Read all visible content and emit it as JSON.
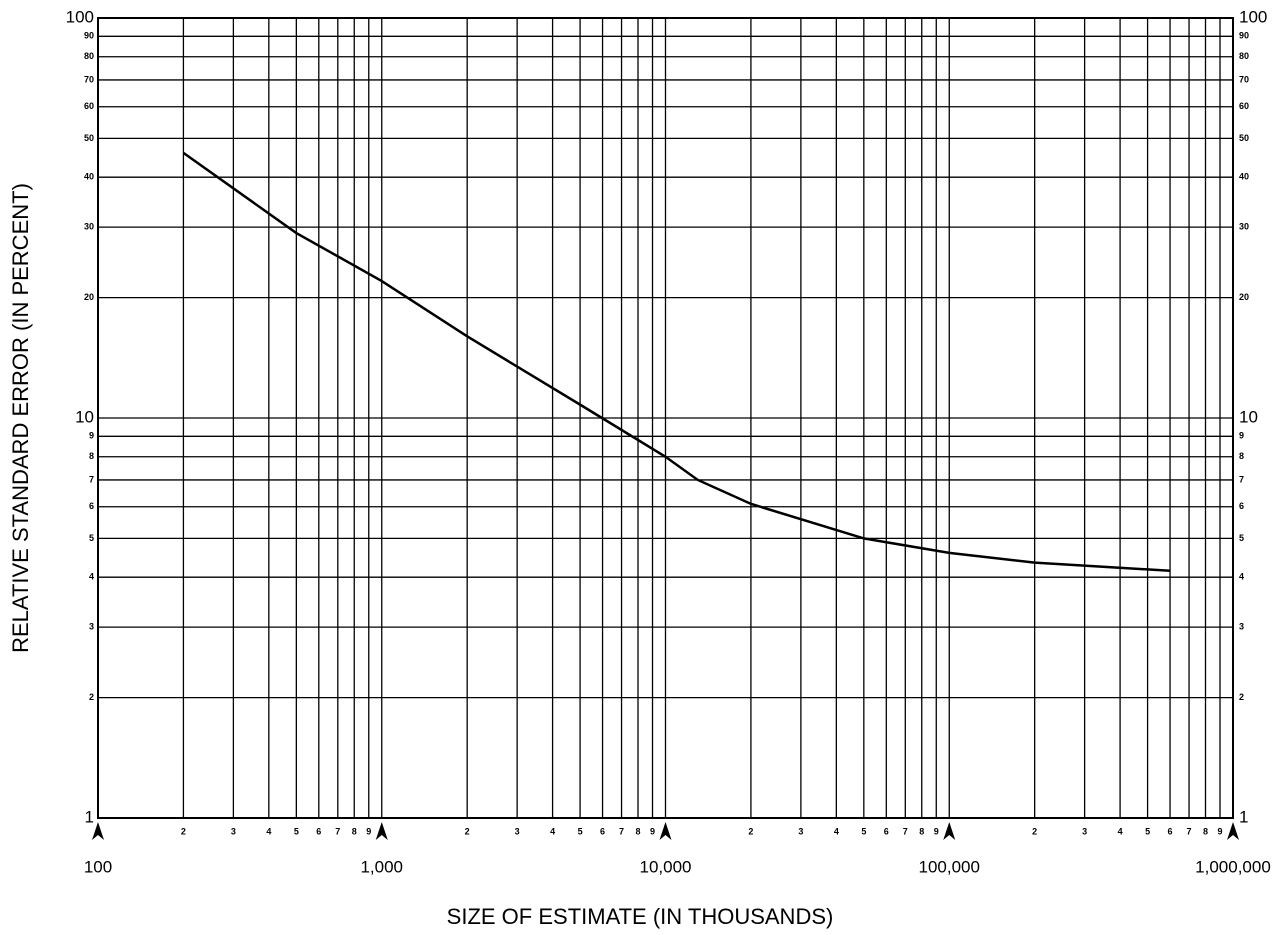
{
  "chart_data": {
    "type": "line",
    "x_label": "SIZE OF ESTIMATE (IN THOUSANDS)",
    "y_label": "RELATIVE STANDARD ERROR (IN PERCENT)",
    "log_x": true,
    "log_y": true,
    "grid": true,
    "xlim": [
      100,
      1000000
    ],
    "ylim": [
      1,
      100
    ],
    "xticks": [
      100,
      {
        "value": 200,
        "label": "2"
      },
      {
        "value": 300,
        "label": "3"
      },
      {
        "value": 400,
        "label": "4"
      },
      {
        "value": 500,
        "label": "5"
      },
      {
        "value": 600,
        "label": "6"
      },
      {
        "value": 700,
        "label": "7"
      },
      {
        "value": 800,
        "label": "8"
      },
      {
        "value": 900,
        "label": "9"
      },
      {
        "value": 1000,
        "label": "1,000"
      },
      {
        "value": 2000,
        "label": "2"
      },
      {
        "value": 3000,
        "label": "3"
      },
      {
        "value": 4000,
        "label": "4"
      },
      {
        "value": 5000,
        "label": "5"
      },
      {
        "value": 6000,
        "label": "6"
      },
      {
        "value": 7000,
        "label": "7"
      },
      {
        "value": 8000,
        "label": "8"
      },
      {
        "value": 9000,
        "label": "9"
      },
      {
        "value": 10000,
        "label": "10,000"
      },
      {
        "value": 20000,
        "label": "2"
      },
      {
        "value": 30000,
        "label": "3"
      },
      {
        "value": 40000,
        "label": "4"
      },
      {
        "value": 50000,
        "label": "5"
      },
      {
        "value": 60000,
        "label": "6"
      },
      {
        "value": 70000,
        "label": "7"
      },
      {
        "value": 80000,
        "label": "8"
      },
      {
        "value": 90000,
        "label": "9"
      },
      {
        "value": 100000,
        "label": "100,000"
      },
      {
        "value": 200000,
        "label": "2"
      },
      {
        "value": 300000,
        "label": "3"
      },
      {
        "value": 400000,
        "label": "4"
      },
      {
        "value": 500000,
        "label": "5"
      },
      {
        "value": 600000,
        "label": "6"
      },
      {
        "value": 700000,
        "label": "7"
      },
      {
        "value": 800000,
        "label": "8"
      },
      {
        "value": 900000,
        "label": "9"
      },
      {
        "value": 1000000,
        "label": "1,000,000"
      }
    ],
    "yticks": [
      1,
      2,
      3,
      4,
      5,
      6,
      7,
      8,
      9,
      10,
      20,
      30,
      40,
      50,
      60,
      70,
      80,
      90,
      100
    ],
    "series": [
      {
        "color": "#000000",
        "x": [
          200,
          500,
          1000,
          2000,
          5000,
          10000,
          13000,
          20000,
          50000,
          100000,
          200000,
          600000
        ],
        "values": [
          46,
          29,
          22,
          16,
          10.8,
          8,
          7,
          6.1,
          5,
          4.6,
          4.35,
          4.15
        ]
      }
    ]
  }
}
